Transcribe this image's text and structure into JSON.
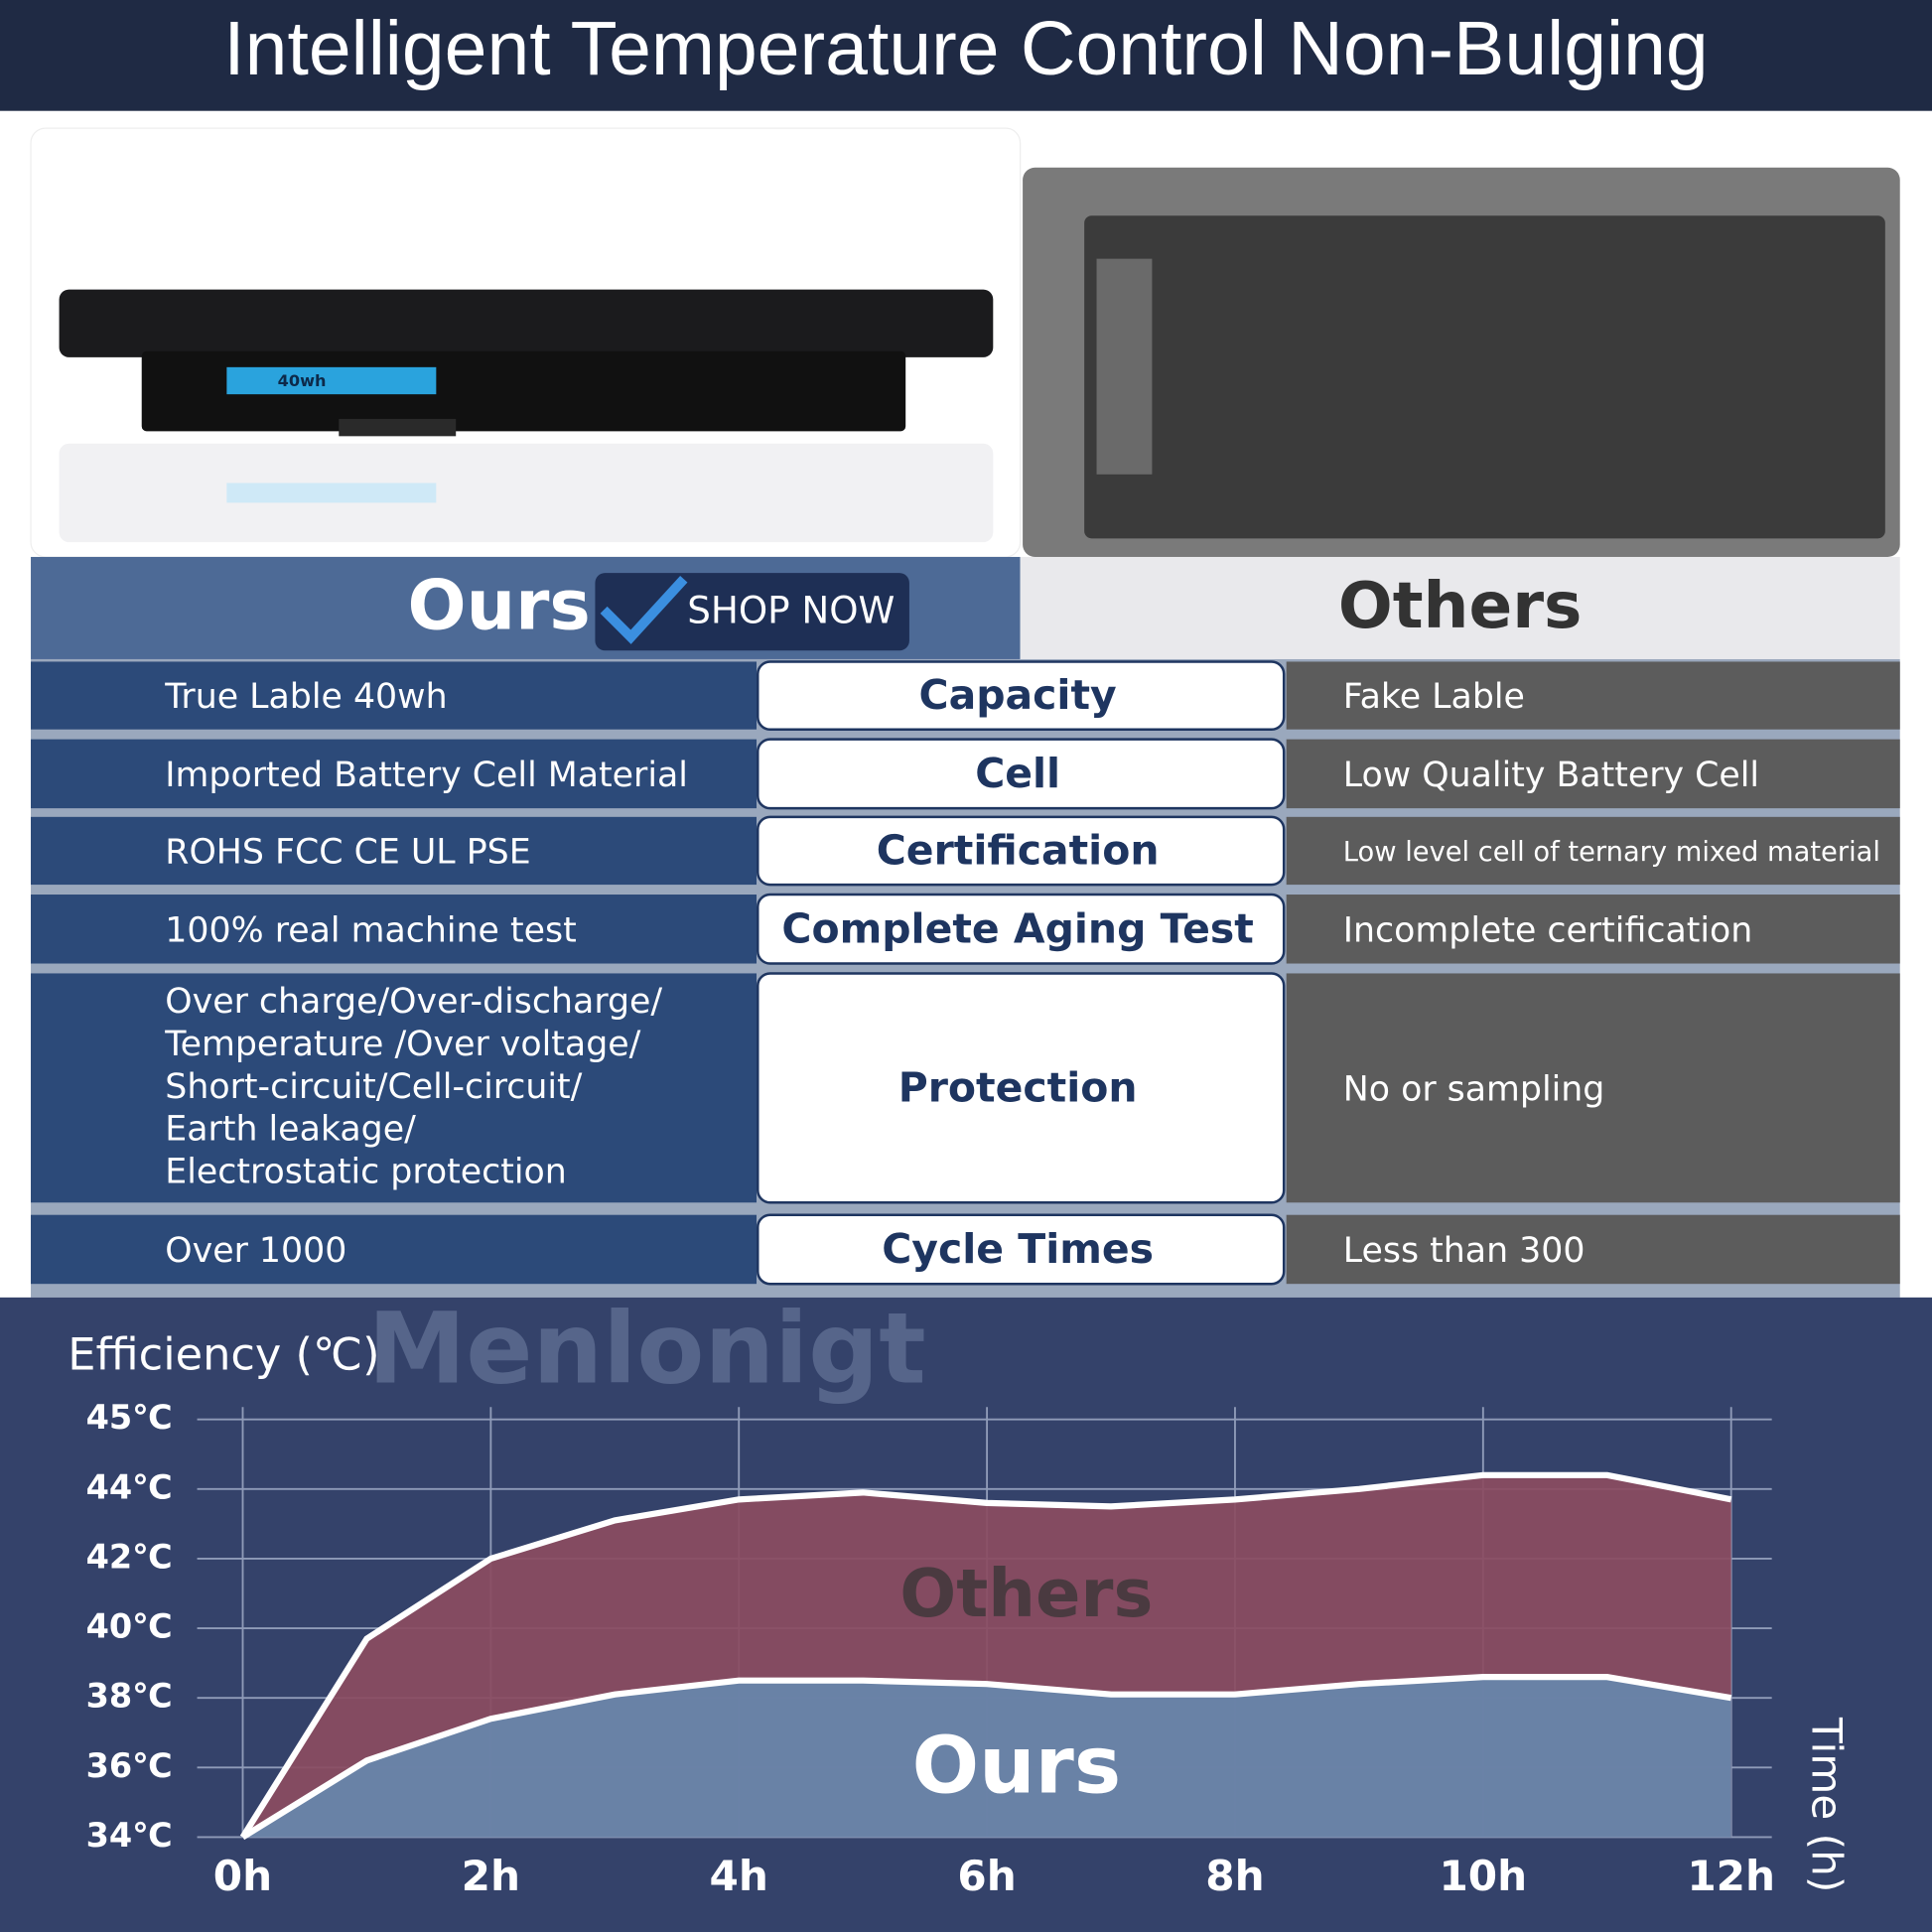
{
  "header": {
    "title": "Intelligent Temperature Control Non-Bulging"
  },
  "battery_label": "40wh",
  "columns": {
    "ours": "Ours",
    "others": "Others"
  },
  "button": "SHOP NOW",
  "table": {
    "rows": [
      [
        "True Lable 40wh",
        "Capacity",
        "Fake Lable"
      ],
      [
        "Imported Battery Cell Material",
        "Cell",
        "Low Quality Battery Cell"
      ],
      [
        "ROHS FCC CE UL PSE",
        "Certification",
        "Low level cell of ternary mixed material"
      ],
      [
        "100% real machine test",
        "Complete Aging Test",
        "Incomplete certification"
      ],
      [
        [
          "Over charge/Over-discharge/",
          "Temperature /Over voltage/",
          "Short-circuit/Cell-circuit/",
          "Earth leakage/",
          "Electrostatic protection"
        ],
        "Protection",
        "No or sampling"
      ],
      [
        "Over 1000",
        "Cycle Times",
        "Less than 300"
      ]
    ]
  },
  "watermark": "Menlonigt",
  "chart_data": {
    "type": "area",
    "y_label": "Efficiency (℃)",
    "x_label": "Time (h)",
    "x": [
      0,
      1,
      2,
      3,
      4,
      5,
      6,
      7,
      8,
      9,
      10,
      11,
      12
    ],
    "series": [
      {
        "name": "Others",
        "color": "#8b4c61",
        "values": [
          34,
          39.7,
          42,
          43.1,
          43.7,
          43.9,
          43.6,
          43.5,
          43.7,
          44,
          44.2,
          44.2,
          43.7
        ]
      },
      {
        "name": "Ours",
        "color": "#6787ad",
        "values": [
          34,
          36.2,
          37.4,
          38.1,
          38.5,
          38.5,
          38.4,
          38.1,
          38.1,
          38.4,
          38.6,
          38.6,
          38
        ]
      }
    ],
    "xlim": [
      0,
      12
    ],
    "xticks": [
      {
        "value": 0,
        "label": "0h"
      },
      {
        "value": 2,
        "label": "2h"
      },
      {
        "value": 4,
        "label": "4h"
      },
      {
        "value": 6,
        "label": "6h"
      },
      {
        "value": 8,
        "label": "8h"
      },
      {
        "value": 10,
        "label": "10h"
      },
      {
        "value": 12,
        "label": "12h"
      }
    ],
    "ylim": [
      34,
      45
    ],
    "yticks": [
      {
        "value": 34,
        "label": "34℃"
      },
      {
        "value": 36,
        "label": "36℃"
      },
      {
        "value": 38,
        "label": "38℃"
      },
      {
        "value": 40,
        "label": "40℃"
      },
      {
        "value": 42,
        "label": "42℃"
      },
      {
        "value": 44,
        "label": "44℃"
      },
      {
        "value": 45,
        "label": "45℃"
      }
    ],
    "grid": true
  }
}
